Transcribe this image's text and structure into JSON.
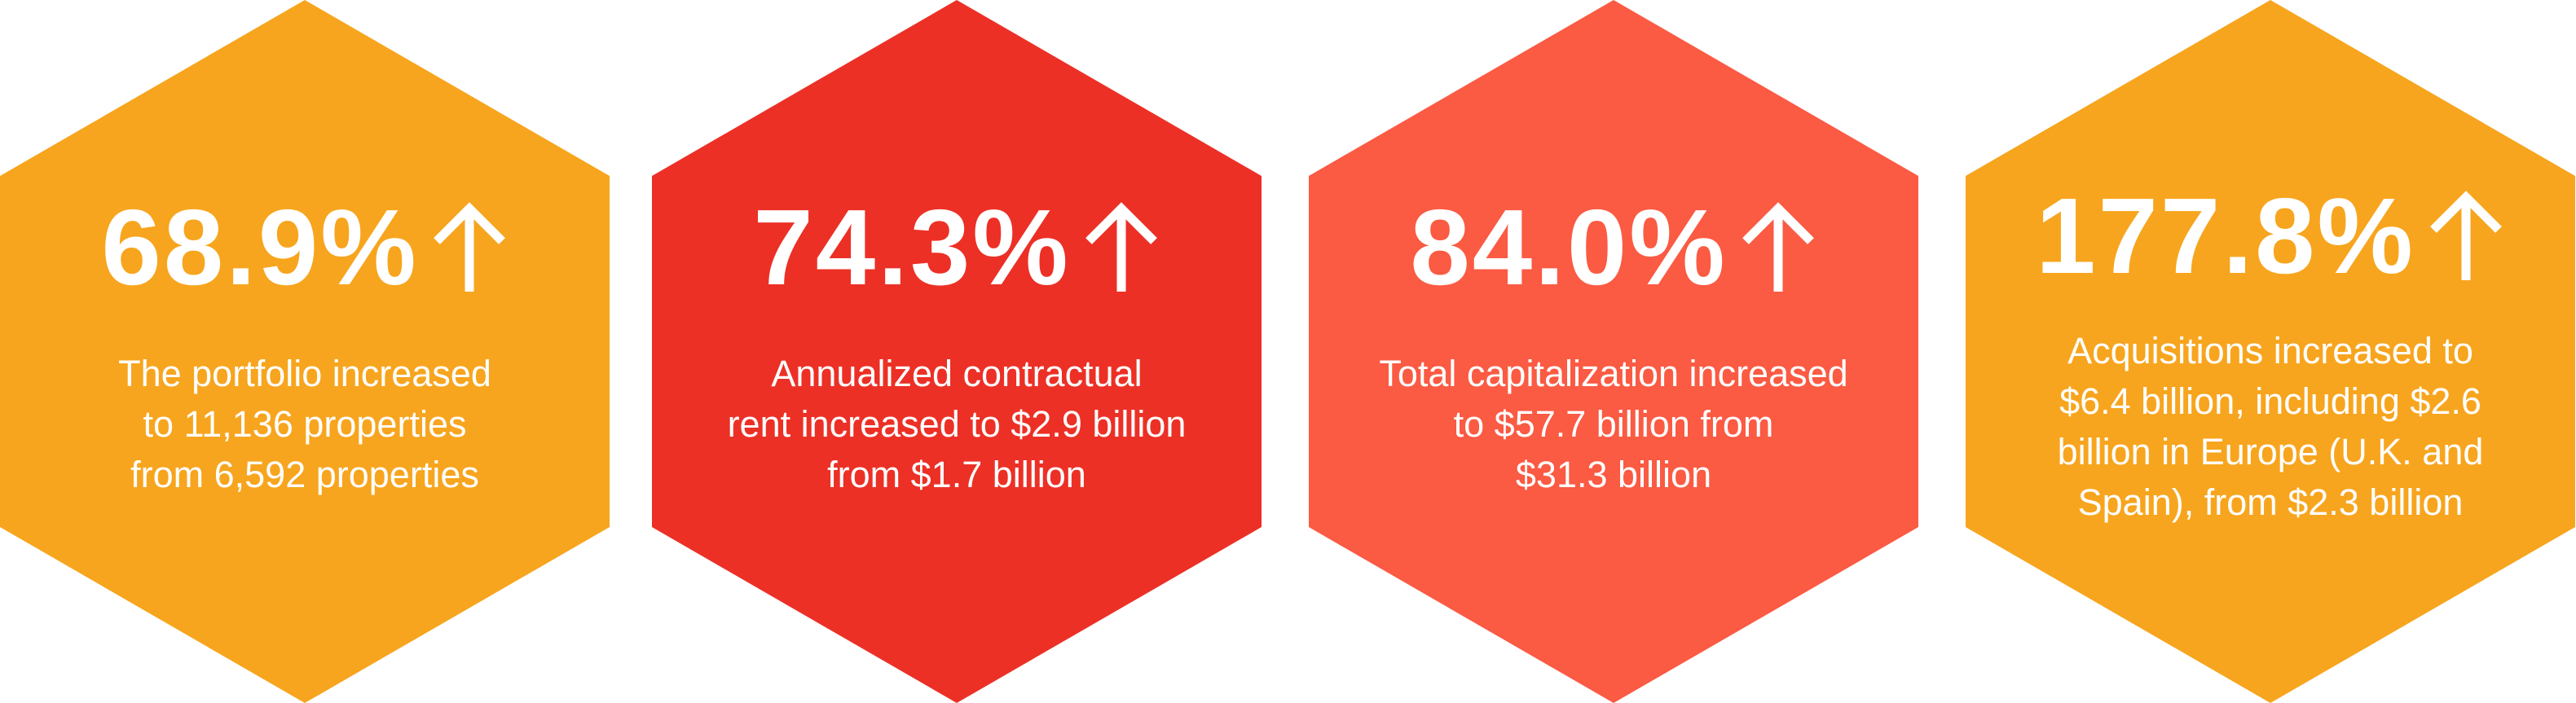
{
  "colors": {
    "orange": "#F7A51E",
    "red": "#EC3026",
    "coral": "#FB5A43",
    "text": "#FFFFFF"
  },
  "stats": [
    {
      "value": "68.9%",
      "arrow_icon": "arrow-up-icon",
      "color": "#F7A51E",
      "lines": [
        "The portfolio increased",
        "to 11,136 properties",
        "from 6,592 properties"
      ]
    },
    {
      "value": "74.3%",
      "arrow_icon": "arrow-up-icon",
      "color": "#EC3026",
      "lines": [
        "Annualized contractual",
        "rent increased to $2.9 billion",
        "from $1.7 billion"
      ]
    },
    {
      "value": "84.0%",
      "arrow_icon": "arrow-up-icon",
      "color": "#FB5A43",
      "lines": [
        "Total capitalization increased",
        "to $57.7 billion from",
        "$31.3 billion"
      ]
    },
    {
      "value": "177.8%",
      "arrow_icon": "arrow-up-icon",
      "color": "#F7A51E",
      "lines": [
        "Acquisitions increased to",
        "$6.4 billion, including $2.6",
        "billion in Europe (U.K. and",
        "Spain), from $2.3 billion"
      ]
    }
  ]
}
